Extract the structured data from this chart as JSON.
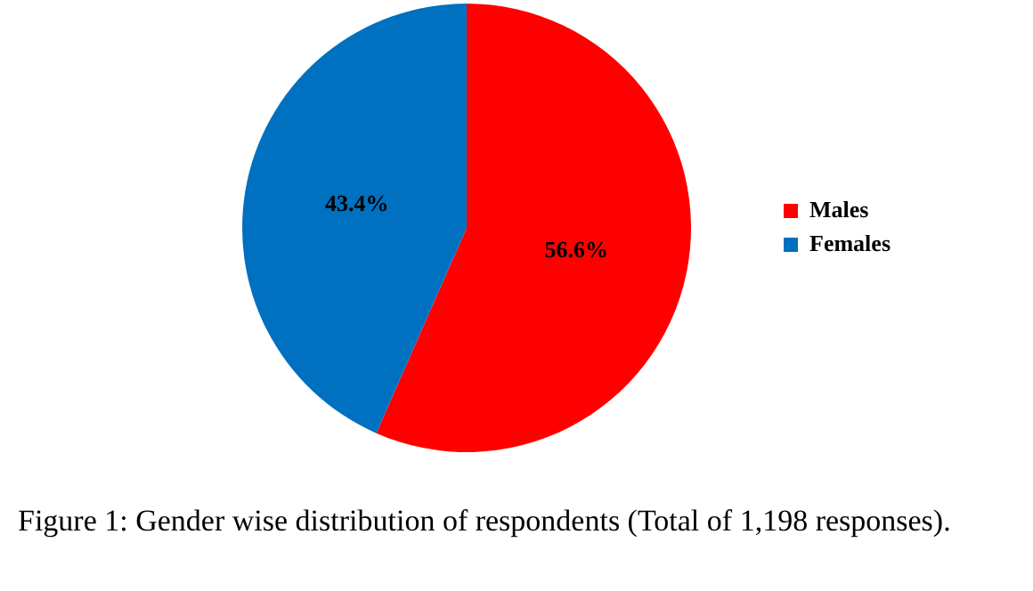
{
  "chart_data": {
    "type": "pie",
    "categories": [
      "Males",
      "Females"
    ],
    "values": [
      56.6,
      43.4
    ],
    "colors": [
      "#ff0000",
      "#0070c0"
    ],
    "value_labels": [
      "56.6%",
      "43.4%"
    ],
    "legend": "right",
    "annotations": [
      "Figure 1: Gender wise distribution of respondents (Total of 1,198 responses)."
    ]
  }
}
